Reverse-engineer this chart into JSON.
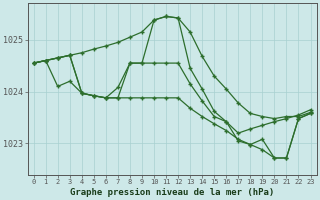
{
  "title": "Graphe pression niveau de la mer (hPa)",
  "bg_color": "#cde8e8",
  "grid_color": "#a8d0d0",
  "line_color": "#2d6e2d",
  "xlim": [
    -0.5,
    23.5
  ],
  "ylim": [
    1022.4,
    1025.7
  ],
  "yticks": [
    1023,
    1024,
    1025
  ],
  "xticks": [
    0,
    1,
    2,
    3,
    4,
    5,
    6,
    7,
    8,
    9,
    10,
    11,
    12,
    13,
    14,
    15,
    16,
    17,
    18,
    19,
    20,
    21,
    22,
    23
  ],
  "series": [
    [
      1024.55,
      1024.6,
      1024.65,
      1024.7,
      1024.75,
      1024.82,
      1024.88,
      1024.95,
      1025.05,
      1025.15,
      1025.38,
      1025.45,
      1025.42,
      1025.15,
      1024.68,
      1024.3,
      1024.05,
      1023.78,
      1023.58,
      1023.52,
      1023.48,
      1023.52,
      1023.52,
      1023.6
    ],
    [
      1024.55,
      1024.6,
      1024.1,
      1024.2,
      1023.97,
      1023.92,
      1023.88,
      1024.08,
      1024.55,
      1024.55,
      1025.38,
      1025.45,
      1025.42,
      1024.45,
      1024.05,
      1023.62,
      1023.42,
      1023.05,
      1022.98,
      1023.08,
      1022.72,
      1022.72,
      1023.48,
      1023.58
    ],
    [
      1024.55,
      1024.6,
      1024.65,
      1024.7,
      1023.97,
      1023.92,
      1023.88,
      1023.88,
      1023.88,
      1023.88,
      1023.88,
      1023.88,
      1023.88,
      1023.68,
      1023.52,
      1023.38,
      1023.25,
      1023.08,
      1022.98,
      1022.88,
      1022.72,
      1022.72,
      1023.48,
      1023.58
    ],
    [
      1024.55,
      1024.6,
      1024.65,
      1024.7,
      1023.97,
      1023.92,
      1023.88,
      1023.88,
      1024.55,
      1024.55,
      1024.55,
      1024.55,
      1024.55,
      1024.15,
      1023.82,
      1023.52,
      1023.42,
      1023.2,
      1023.28,
      1023.35,
      1023.42,
      1023.48,
      1023.55,
      1023.65
    ]
  ]
}
